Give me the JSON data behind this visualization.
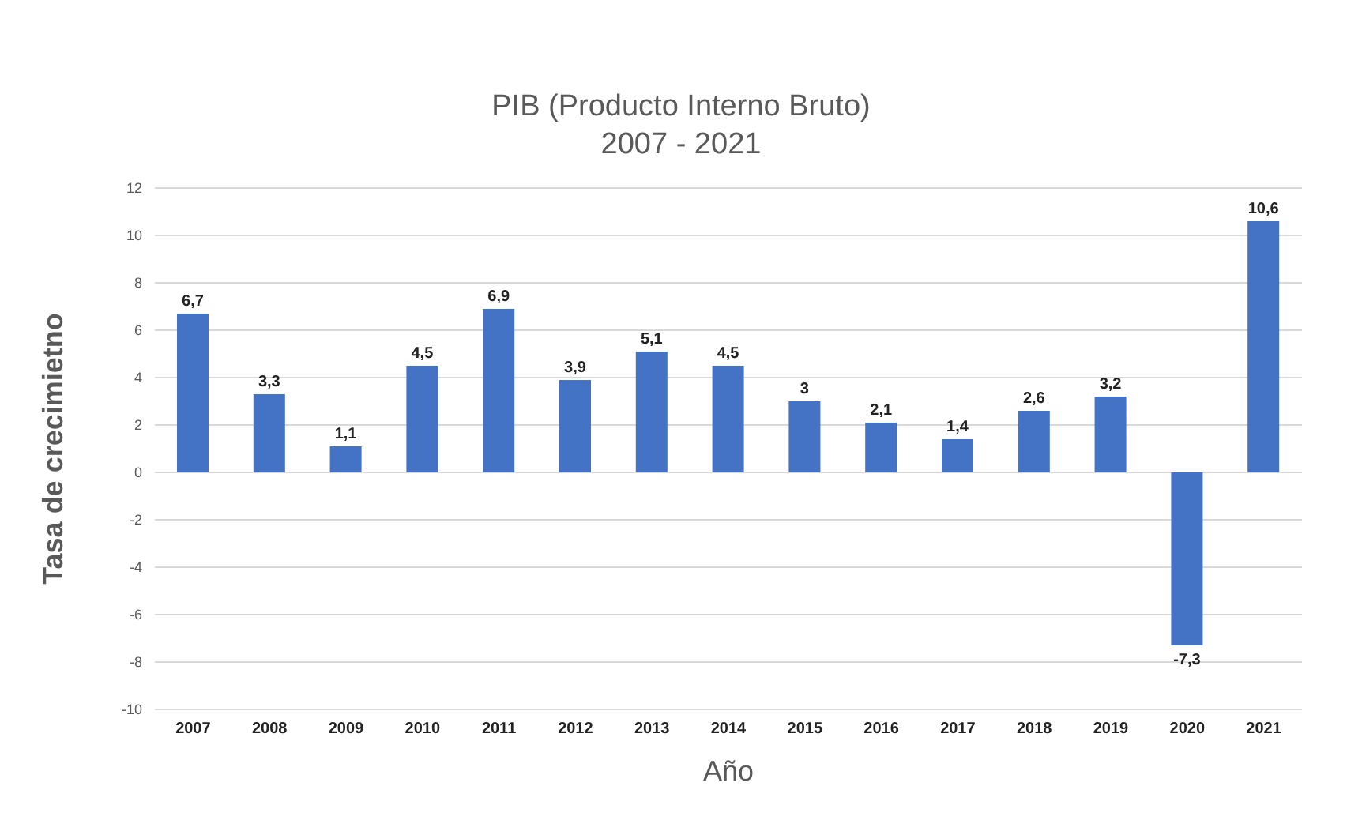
{
  "chart_data": {
    "type": "bar",
    "title": "PIB (Producto Interno Bruto)",
    "subtitle": "2007 - 2021",
    "xlabel": "Año",
    "ylabel": "Tasa de crecimietno",
    "categories": [
      "2007",
      "2008",
      "2009",
      "2010",
      "2011",
      "2012",
      "2013",
      "2014",
      "2015",
      "2016",
      "2017",
      "2018",
      "2019",
      "2020",
      "2021"
    ],
    "values": [
      6.7,
      3.3,
      1.1,
      4.5,
      6.9,
      3.9,
      5.1,
      4.5,
      3,
      2.1,
      1.4,
      2.6,
      3.2,
      -7.3,
      10.6
    ],
    "value_labels": [
      "6,7",
      "3,3",
      "1,1",
      "4,5",
      "6,9",
      "3,9",
      "5,1",
      "4,5",
      "3",
      "2,1",
      "1,4",
      "2,6",
      "3,2",
      "-7,3",
      "10,6"
    ],
    "color": "#4472c4",
    "ylim": [
      -10,
      12
    ],
    "yticks": [
      -10,
      -8,
      -6,
      -4,
      -2,
      0,
      2,
      4,
      6,
      8,
      10,
      12
    ],
    "grid": "y"
  }
}
